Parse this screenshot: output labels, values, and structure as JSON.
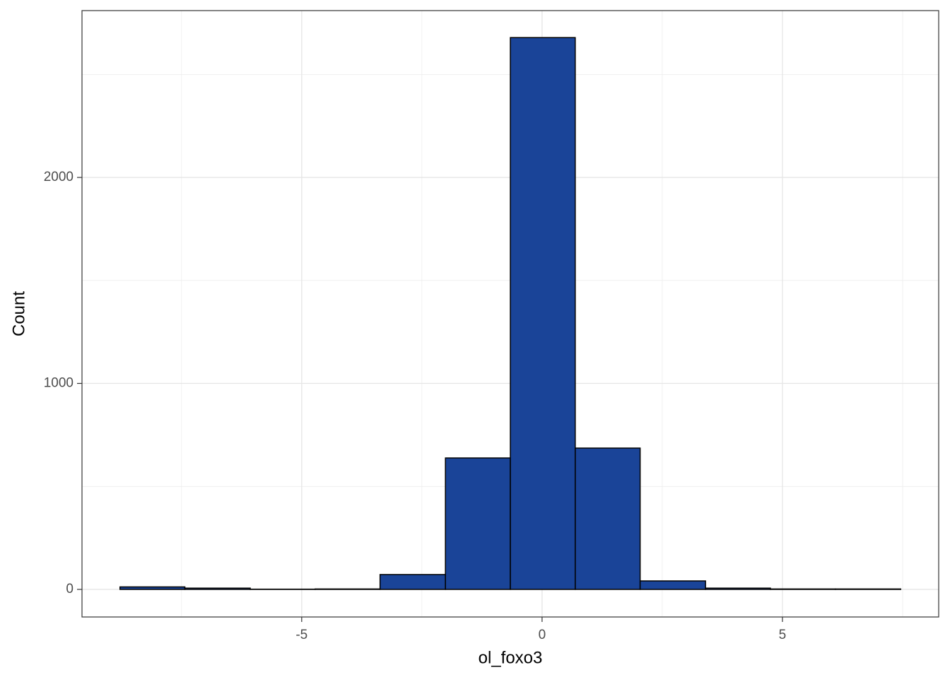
{
  "chart_data": {
    "type": "histogram",
    "xlabel": "ol_foxo3",
    "ylabel": "Count",
    "bins": [
      -8.78,
      -7.43,
      -6.07,
      -4.72,
      -3.37,
      -2.01,
      -0.66,
      0.69,
      2.04,
      3.4,
      4.75,
      6.1,
      7.46
    ],
    "values": [
      12,
      6,
      1,
      2,
      72,
      638,
      2679,
      686,
      41,
      6,
      2,
      2
    ],
    "color": "#1a4498",
    "edgecolor": "#000000",
    "xlim": [
      -9.57,
      8.25
    ],
    "xticks": [
      -5,
      0,
      5
    ],
    "ylim": [
      -134,
      2810
    ],
    "yticks": [
      0,
      1000,
      2000
    ],
    "grid": true,
    "minor_grid": true
  }
}
